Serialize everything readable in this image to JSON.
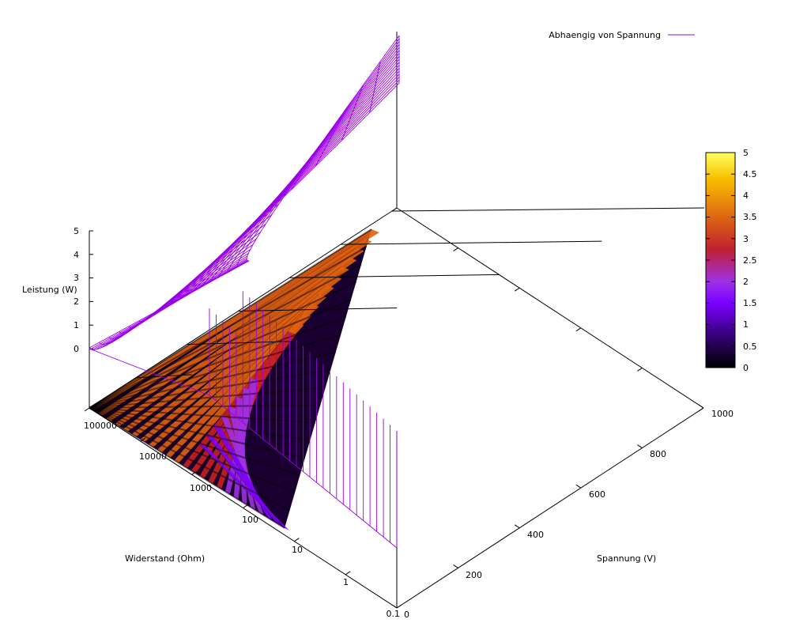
{
  "chart_data": {
    "type": "surface3d",
    "zlabel": "Leistung (W)",
    "ylabel": "Widerstand (Ohm)",
    "xlabel": "Spannung (V)",
    "z_ticks": [
      "0",
      "1",
      "2",
      "3",
      "4",
      "5"
    ],
    "zlim": [
      0,
      5
    ],
    "resistance_ticks": [
      "100000",
      "10000",
      "1000",
      "100",
      "10",
      "1",
      "0.1"
    ],
    "resistance_scale": "log",
    "resistance_range": [
      0.1,
      100000
    ],
    "voltage_ticks": [
      "0",
      "200",
      "400",
      "600",
      "800",
      "1000"
    ],
    "voltage_range": [
      0,
      1000
    ],
    "legend": [
      {
        "label": "Abhaengig von Spannung",
        "color": "#9a00e6"
      }
    ],
    "legend_position": "top-right",
    "colorbar": {
      "ticks": [
        "0",
        "0.5",
        "1",
        "1.5",
        "2",
        "2.5",
        "3",
        "3.5",
        "4",
        "4.5",
        "5"
      ],
      "range": [
        0,
        5
      ],
      "palette": [
        "#000000",
        "#4a00a8",
        "#8000ff",
        "#a030e0",
        "#c83020",
        "#e07010",
        "#ffcc00",
        "#ffff80"
      ]
    }
  }
}
